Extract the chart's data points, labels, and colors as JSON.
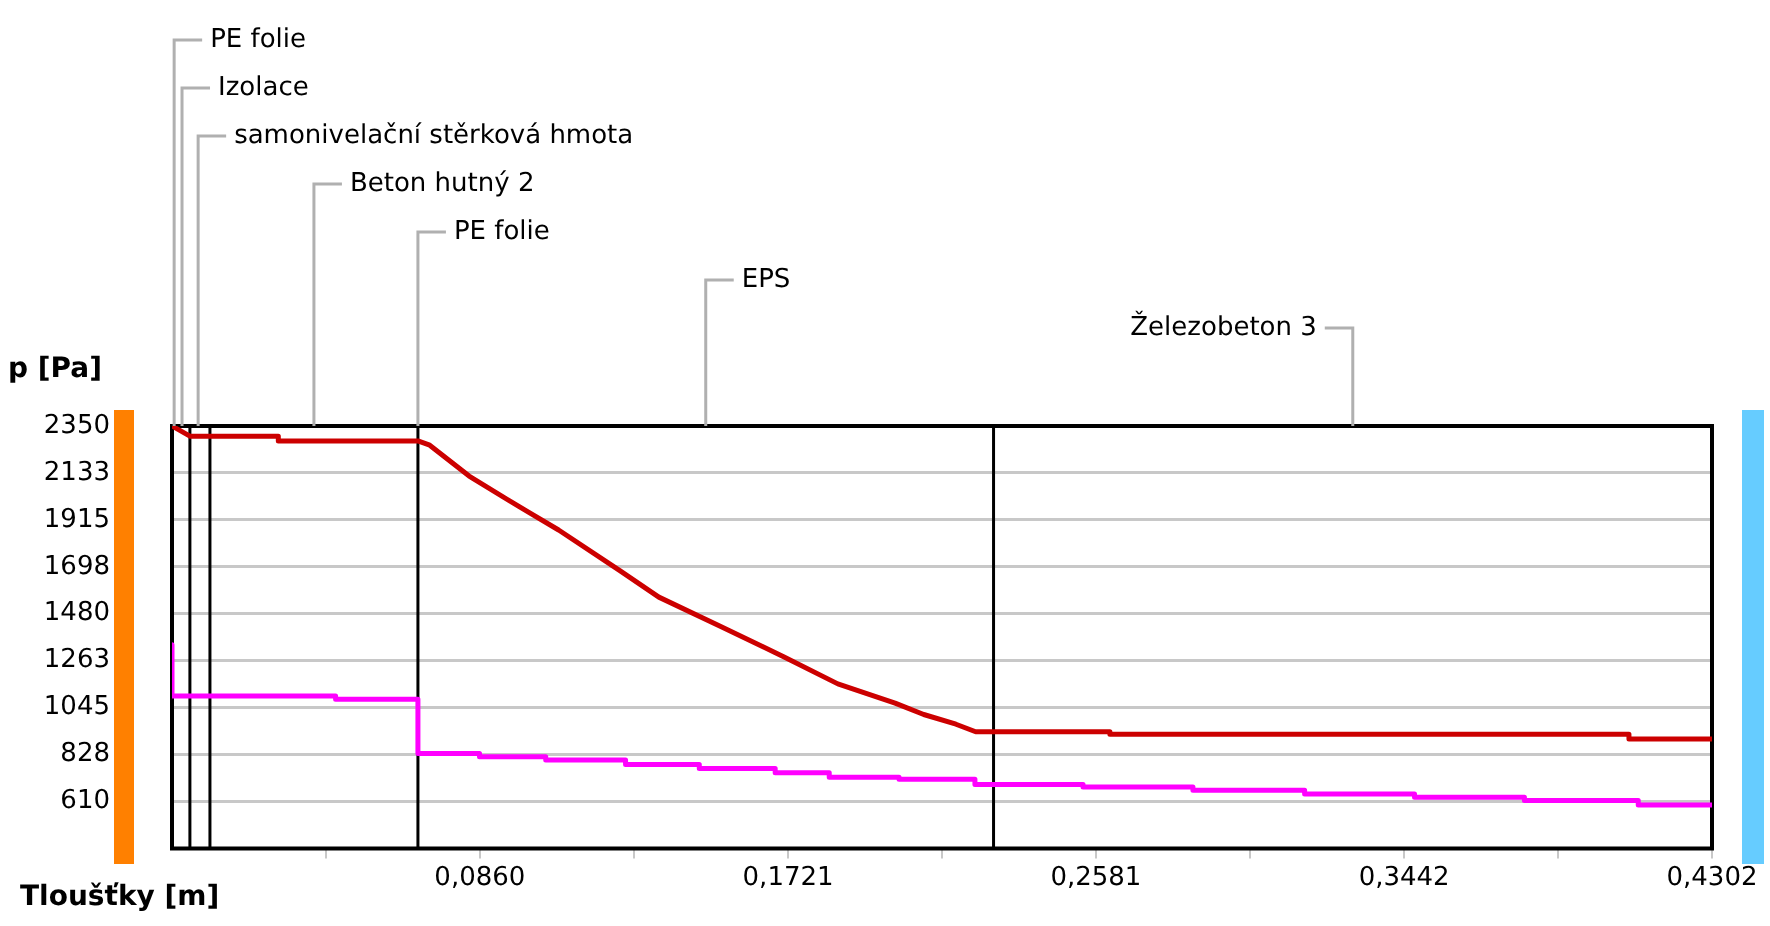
{
  "chart_data": {
    "type": "line",
    "xlabel": "Tloušťky [m]",
    "ylabel": "p [Pa]",
    "annotations": [
      {
        "text": "PE folie",
        "x": 0.0006,
        "y": 2350
      },
      {
        "text": "Izolace",
        "x": 0.0028,
        "y": 2350
      },
      {
        "text": "samonivelační stěrková hmota",
        "x": 0.0073,
        "y": 2350
      },
      "Beton hutný 2",
      {
        "text": "PE folie",
        "x": 0.0687,
        "y": 2350
      },
      "EPS",
      "Železobeton 3"
    ],
    "ref_lines": [
      {
        "axis": "x",
        "value": 0.005,
        "color": "#000000"
      },
      {
        "axis": "x",
        "value": 0.0106,
        "color": "#000000"
      },
      {
        "axis": "x",
        "value": 0.0687,
        "color": "#000000"
      },
      {
        "axis": "x",
        "value": 0.2295,
        "color": "#000000"
      }
    ],
    "xlim": [
      0,
      0.4302
    ],
    "xticks": [
      {
        "value": 0.043,
        "label": null
      },
      {
        "value": 0.086,
        "label": "0,0860"
      },
      {
        "value": 0.1291,
        "label": null
      },
      {
        "value": 0.1721,
        "label": "0,1721"
      },
      {
        "value": 0.2151,
        "label": null
      },
      {
        "value": 0.2581,
        "label": "0,2581"
      },
      {
        "value": 0.3012,
        "label": null
      },
      {
        "value": 0.3442,
        "label": "0,3442"
      },
      {
        "value": 0.3872,
        "label": null
      },
      {
        "value": 0.4302,
        "label": "0,4302"
      }
    ],
    "ylim": [
      392.5,
      2350
    ],
    "yticks": [
      2350,
      {
        "value": 2132.5,
        "label": "2133"
      },
      1915,
      {
        "value": 1697.5,
        "label": "1698"
      },
      1480,
      {
        "value": 1262.5,
        "label": "1263"
      },
      1045,
      {
        "value": 827.5,
        "label": "828"
      },
      610
    ],
    "grid": "y",
    "series": [
      {
        "color": "#cc0000",
        "x": [
          0,
          0.005,
          0.0297,
          0.0297,
          0.0687,
          0.072,
          0.083,
          0.097,
          0.108,
          0.125,
          0.136,
          0.153,
          0.171,
          0.186,
          0.202,
          0.21,
          0.219,
          0.2245,
          0.2295,
          0.262,
          0.262,
          0.407,
          0.407,
          0.4302
        ],
        "values": [
          2350,
          2303,
          2303,
          2281,
          2281,
          2261,
          2118,
          1976,
          1868,
          1681,
          1557,
          1423,
          1280,
          1155,
          1066,
          1013,
          968,
          933,
          933,
          933,
          921,
          921,
          900,
          900
        ]
      },
      {
        "color": "#ff00ff",
        "x": [
          0,
          0,
          0.0457,
          0.0457,
          0.0687,
          0.0687,
          0.0859,
          0.0859,
          0.1044,
          0.1044,
          0.1267,
          0.1267,
          0.1473,
          0.1473,
          0.1685,
          0.1685,
          0.1836,
          0.1836,
          0.2031,
          0.2031,
          0.2243,
          0.2243,
          0.2545,
          0.2545,
          0.2852,
          0.2852,
          0.3164,
          0.3164,
          0.3471,
          0.3471,
          0.3778,
          0.3778,
          0.4096,
          0.4096,
          0.4302
        ],
        "values": [
          1336,
          1099,
          1099,
          1084,
          1084,
          832,
          832,
          817,
          817,
          802,
          802,
          781,
          781,
          763,
          763,
          743,
          743,
          722,
          722,
          713,
          713,
          689,
          689,
          677,
          677,
          662,
          662,
          645,
          645,
          630,
          630,
          614,
          614,
          594,
          594
        ]
      }
    ]
  }
}
